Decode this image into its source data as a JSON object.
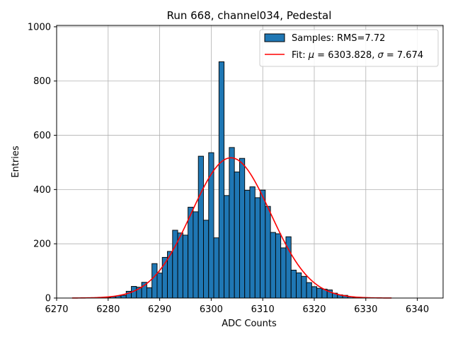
{
  "chart_data": {
    "type": "bar",
    "title": "Run 668, channel034, Pedestal",
    "xlabel": "ADC Counts",
    "ylabel": "Entries",
    "xlim": [
      6270,
      6345
    ],
    "ylim": [
      0,
      1005
    ],
    "xticks": [
      6270,
      6280,
      6290,
      6300,
      6310,
      6320,
      6330,
      6340
    ],
    "yticks": [
      0,
      200,
      400,
      600,
      800,
      1000
    ],
    "grid": true,
    "legend_position": "top-right",
    "colors": {
      "bars": "#1f77b4",
      "bar_edge": "#000000",
      "fit": "#ff0000",
      "grid": "#b0b0b0"
    },
    "histogram": {
      "name": "Samples: RMS=7.72",
      "bins": [
        {
          "x": 6280,
          "y": 2
        },
        {
          "x": 6281,
          "y": 5
        },
        {
          "x": 6282,
          "y": 8
        },
        {
          "x": 6283,
          "y": 10
        },
        {
          "x": 6284,
          "y": 25
        },
        {
          "x": 6285,
          "y": 43
        },
        {
          "x": 6286,
          "y": 40
        },
        {
          "x": 6287,
          "y": 58
        },
        {
          "x": 6288,
          "y": 38
        },
        {
          "x": 6289,
          "y": 127
        },
        {
          "x": 6290,
          "y": 92
        },
        {
          "x": 6291,
          "y": 150
        },
        {
          "x": 6292,
          "y": 172
        },
        {
          "x": 6293,
          "y": 250
        },
        {
          "x": 6294,
          "y": 240
        },
        {
          "x": 6295,
          "y": 232
        },
        {
          "x": 6296,
          "y": 335
        },
        {
          "x": 6297,
          "y": 318
        },
        {
          "x": 6298,
          "y": 523
        },
        {
          "x": 6299,
          "y": 287
        },
        {
          "x": 6300,
          "y": 536
        },
        {
          "x": 6301,
          "y": 222
        },
        {
          "x": 6302,
          "y": 871
        },
        {
          "x": 6303,
          "y": 378
        },
        {
          "x": 6304,
          "y": 555
        },
        {
          "x": 6305,
          "y": 465
        },
        {
          "x": 6306,
          "y": 515
        },
        {
          "x": 6307,
          "y": 397
        },
        {
          "x": 6308,
          "y": 410
        },
        {
          "x": 6309,
          "y": 370
        },
        {
          "x": 6310,
          "y": 398
        },
        {
          "x": 6311,
          "y": 338
        },
        {
          "x": 6312,
          "y": 242
        },
        {
          "x": 6313,
          "y": 237
        },
        {
          "x": 6314,
          "y": 185
        },
        {
          "x": 6315,
          "y": 226
        },
        {
          "x": 6316,
          "y": 103
        },
        {
          "x": 6317,
          "y": 93
        },
        {
          "x": 6318,
          "y": 80
        },
        {
          "x": 6319,
          "y": 57
        },
        {
          "x": 6320,
          "y": 42
        },
        {
          "x": 6321,
          "y": 36
        },
        {
          "x": 6322,
          "y": 33
        },
        {
          "x": 6323,
          "y": 30
        },
        {
          "x": 6324,
          "y": 18
        },
        {
          "x": 6325,
          "y": 12
        },
        {
          "x": 6326,
          "y": 10
        },
        {
          "x": 6327,
          "y": 5
        },
        {
          "x": 6328,
          "y": 3
        },
        {
          "x": 6329,
          "y": 2
        },
        {
          "x": 6330,
          "y": 1
        }
      ]
    },
    "fit": {
      "name_prefix": "Fit: ",
      "mu_symbol": "μ",
      "mu_text": " = 6303.828, ",
      "sigma_symbol": "σ",
      "sigma_text": " = 7.674",
      "mu": 6303.828,
      "sigma": 7.674,
      "amplitude": 517,
      "x_range": [
        6273,
        6335
      ]
    }
  }
}
